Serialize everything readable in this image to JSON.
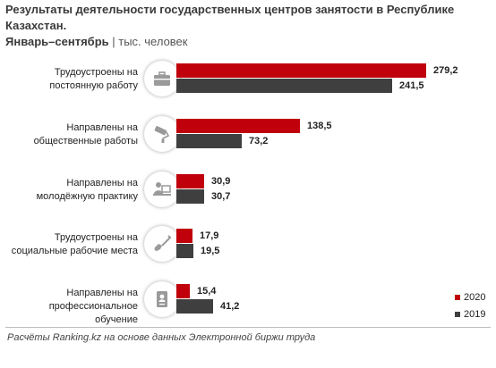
{
  "title": {
    "line1": "Результаты деятельности государственных центров занятости в Республике  Казахстан.",
    "line2_bold": "Январь–сентябрь",
    "line2_unit": " | тыс. человек"
  },
  "chart_data": {
    "type": "bar",
    "orientation": "horizontal",
    "categories": [
      "Трудоустроены на постоянную работу",
      "Направлены на общественные работы",
      "Направлены на молодёжную практику",
      "Трудоустроены на социальные рабочие места",
      "Направлены на профессиональное обучение"
    ],
    "category_lines": [
      [
        "Трудоустроены на",
        "постоянную работу"
      ],
      [
        "Направлены на",
        "общественные работы"
      ],
      [
        "Направлены на",
        "молодёжную практику"
      ],
      [
        "Трудоустроены на",
        "социальные рабочие места"
      ],
      [
        "Направлены на",
        "профессиональное обучение"
      ]
    ],
    "category_icons": [
      "briefcase-icon",
      "paint-roller-icon",
      "laptop-user-icon",
      "shovel-icon",
      "id-card-icon"
    ],
    "series": [
      {
        "name": "2020",
        "color": "#c0000b",
        "values": [
          279.2,
          138.5,
          30.9,
          17.9,
          15.4
        ],
        "labels": [
          "279,2",
          "138,5",
          "30,9",
          "17,9",
          "15,4"
        ]
      },
      {
        "name": "2019",
        "color": "#3f3f3f",
        "values": [
          241.5,
          73.2,
          30.7,
          19.5,
          41.2
        ],
        "labels": [
          "241,5",
          "73,2",
          "30,7",
          "19,5",
          "41,2"
        ]
      }
    ],
    "xlim": [
      0,
      279.2
    ],
    "legend": "bottom-right",
    "grid": false
  },
  "source": "Расчёты Ranking.kz на основе данных Электронной биржи труда"
}
